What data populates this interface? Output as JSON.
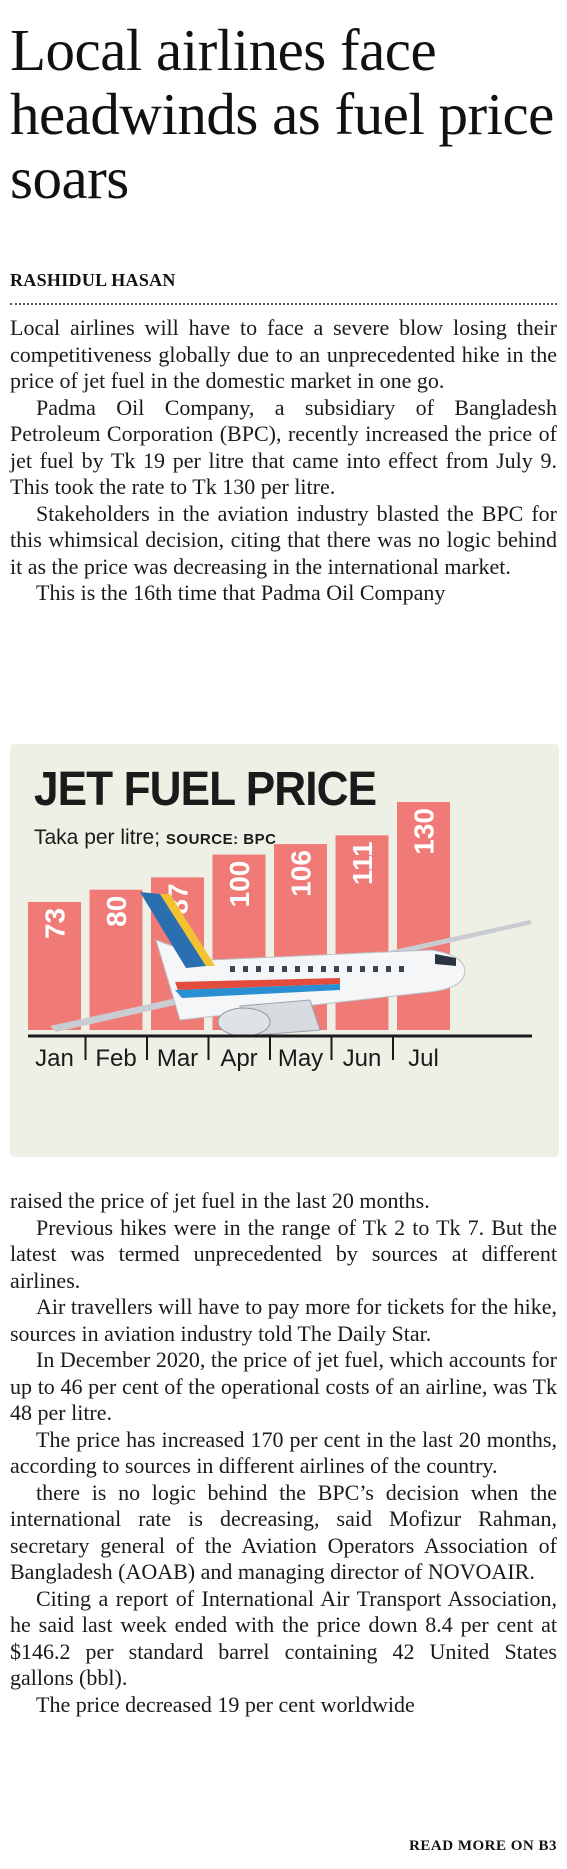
{
  "article": {
    "headline": "Local airlines face headwinds as fuel price soars",
    "byline": "RASHIDUL HASAN",
    "paragraphs_before_chart": [
      "Local airlines will have to face a severe blow losing their competitiveness globally due to an unprecedented hike in the price of jet fuel in the domestic market in one go.",
      "Padma Oil Company, a subsidiary of Bangladesh Petroleum Corporation (BPC), recently increased the price of jet fuel by Tk 19 per litre that came into effect from July 9. This took the rate to Tk 130 per litre.",
      "Stakeholders in the aviation industry blasted the BPC for this whimsical decision, citing that there was no logic behind it as the price was decreasing in the international market.",
      "This is the 16th time that Padma Oil Company"
    ],
    "paragraphs_after_chart": [
      "raised the price of jet fuel in the last 20 months.",
      "Previous hikes were in the range of Tk 2 to Tk 7. But the latest was termed unprecedented by sources at different airlines.",
      "Air travellers will have to pay more for tickets for the hike, sources in aviation industry told The Daily Star.",
      "In December 2020, the price of jet fuel, which accounts for up to 46 per cent of the operational costs of an airline, was Tk 48 per litre.",
      "The price has increased 170 per cent in the last 20 months, according to sources in different airlines of the country.",
      "there is no logic behind the BPC’s decision when the international rate is decreasing, said Mofizur Rahman, secretary general of the Aviation Operators Association of Bangladesh (AOAB) and managing director of NOVOAIR.",
      "Citing a report of International Air Transport Association, he said last week ended with the price down 8.4 per cent at $146.2 per standard barrel containing 42 United States gallons (bbl).",
      "The price decreased 19 per cent worldwide"
    ],
    "read_more": "READ MORE ON B3"
  },
  "chart": {
    "title": "JET FUEL PRICE",
    "subtitle_unit": "Taka per litre;",
    "subtitle_source": "SOURCE: BPC",
    "colors": {
      "bar": "#f07a76",
      "background": "#eef0e6",
      "label": "#ffffff",
      "axis": "#1a1a1a"
    },
    "illustration": "airplane-illustration"
  },
  "chart_data": {
    "type": "bar",
    "title": "JET FUEL PRICE",
    "ylabel": "Taka per litre",
    "categories": [
      "Jan",
      "Feb",
      "Mar",
      "Apr",
      "May",
      "Jun",
      "Jul"
    ],
    "values": [
      73,
      80,
      87,
      100,
      106,
      111,
      130
    ],
    "ylim": [
      0,
      130
    ],
    "grid": false,
    "legend": "none"
  }
}
